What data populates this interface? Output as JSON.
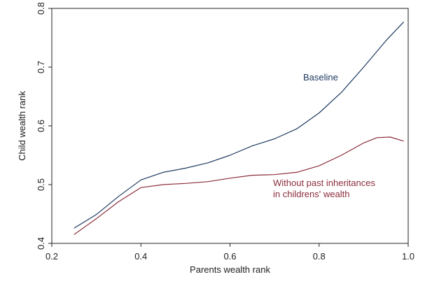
{
  "chart_data": {
    "type": "line",
    "title": "",
    "xlabel": "Parents wealth rank",
    "ylabel": "Child wealth rank",
    "xlim": [
      0.2,
      1.0
    ],
    "ylim": [
      0.4,
      0.8
    ],
    "xticks": [
      "0.2",
      "0.4",
      "0.6",
      "0.8",
      "1.0"
    ],
    "yticks": [
      "0.4",
      "0.5",
      "0.6",
      "0.7",
      "0.8"
    ],
    "grid": false,
    "legend": "none",
    "series": [
      {
        "name": "Baseline",
        "color": "#1f3a60",
        "x": [
          0.25,
          0.3,
          0.35,
          0.4,
          0.45,
          0.5,
          0.55,
          0.6,
          0.65,
          0.7,
          0.75,
          0.8,
          0.85,
          0.9,
          0.95,
          0.99
        ],
        "y": [
          0.426,
          0.449,
          0.48,
          0.508,
          0.521,
          0.528,
          0.537,
          0.55,
          0.566,
          0.578,
          0.595,
          0.622,
          0.657,
          0.7,
          0.745,
          0.777
        ]
      },
      {
        "name": "Without past inheritances\nin childrens' wealth",
        "label_lines": [
          "Without past inheritances",
          "in childrens' wealth"
        ],
        "color": "#8b2e3c",
        "x": [
          0.25,
          0.3,
          0.35,
          0.4,
          0.45,
          0.5,
          0.55,
          0.6,
          0.65,
          0.7,
          0.75,
          0.8,
          0.85,
          0.9,
          0.93,
          0.96,
          0.99
        ],
        "y": [
          0.415,
          0.442,
          0.471,
          0.495,
          0.5,
          0.502,
          0.505,
          0.511,
          0.516,
          0.517,
          0.521,
          0.532,
          0.55,
          0.571,
          0.58,
          0.581,
          0.574
        ]
      }
    ]
  }
}
